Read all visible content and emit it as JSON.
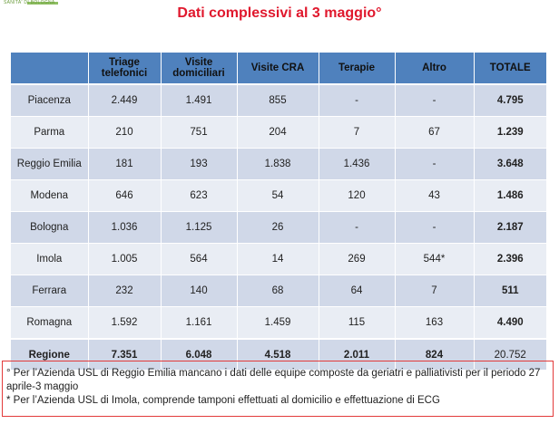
{
  "header": {
    "logo_text": "SANITA' DI BOLOGNA",
    "title": "Dati complessivi al 3 maggio°"
  },
  "table": {
    "columns": [
      "",
      "Triage telefonici",
      "Visite domiciliari",
      "Visite CRA",
      "Terapie",
      "Altro",
      "TOTALE"
    ],
    "rows": [
      {
        "name": "Piacenza",
        "cells": [
          "2.449",
          "1.491",
          "855",
          "-",
          "-",
          "4.795"
        ]
      },
      {
        "name": "Parma",
        "cells": [
          "210",
          "751",
          "204",
          "7",
          "67",
          "1.239"
        ]
      },
      {
        "name": "Reggio Emilia",
        "cells": [
          "181",
          "193",
          "1.838",
          "1.436",
          "-",
          "3.648"
        ]
      },
      {
        "name": "Modena",
        "cells": [
          "646",
          "623",
          "54",
          "120",
          "43",
          "1.486"
        ]
      },
      {
        "name": "Bologna",
        "cells": [
          "1.036",
          "1.125",
          "26",
          "-",
          "-",
          "2.187"
        ]
      },
      {
        "name": "Imola",
        "cells": [
          "1.005",
          "564",
          "14",
          "269",
          "544*",
          "2.396"
        ]
      },
      {
        "name": "Ferrara",
        "cells": [
          "232",
          "140",
          "68",
          "64",
          "7",
          "511"
        ]
      },
      {
        "name": "Romagna",
        "cells": [
          "1.592",
          "1.161",
          "1.459",
          "115",
          "163",
          "4.490"
        ]
      }
    ],
    "total_row": {
      "name": "Regione",
      "cells": [
        "7.351",
        "6.048",
        "4.518",
        "2.011",
        "824",
        "20.752"
      ]
    }
  },
  "notes": [
    "° Per l’Azienda USL di Reggio Emilia mancano i dati delle equipe composte da geriatri e palliativisti per il periodo 27 aprile-3 maggio",
    "* Per l’Azienda USL di Imola, comprende tamponi effettuati al domicilio e effettuazione di ECG"
  ],
  "colors": {
    "title": "#e0182d",
    "header_fill": "#4f81bd",
    "row_dark": "#d0d8e8",
    "row_light": "#e9edf4",
    "note_border": "#e23a3a"
  }
}
